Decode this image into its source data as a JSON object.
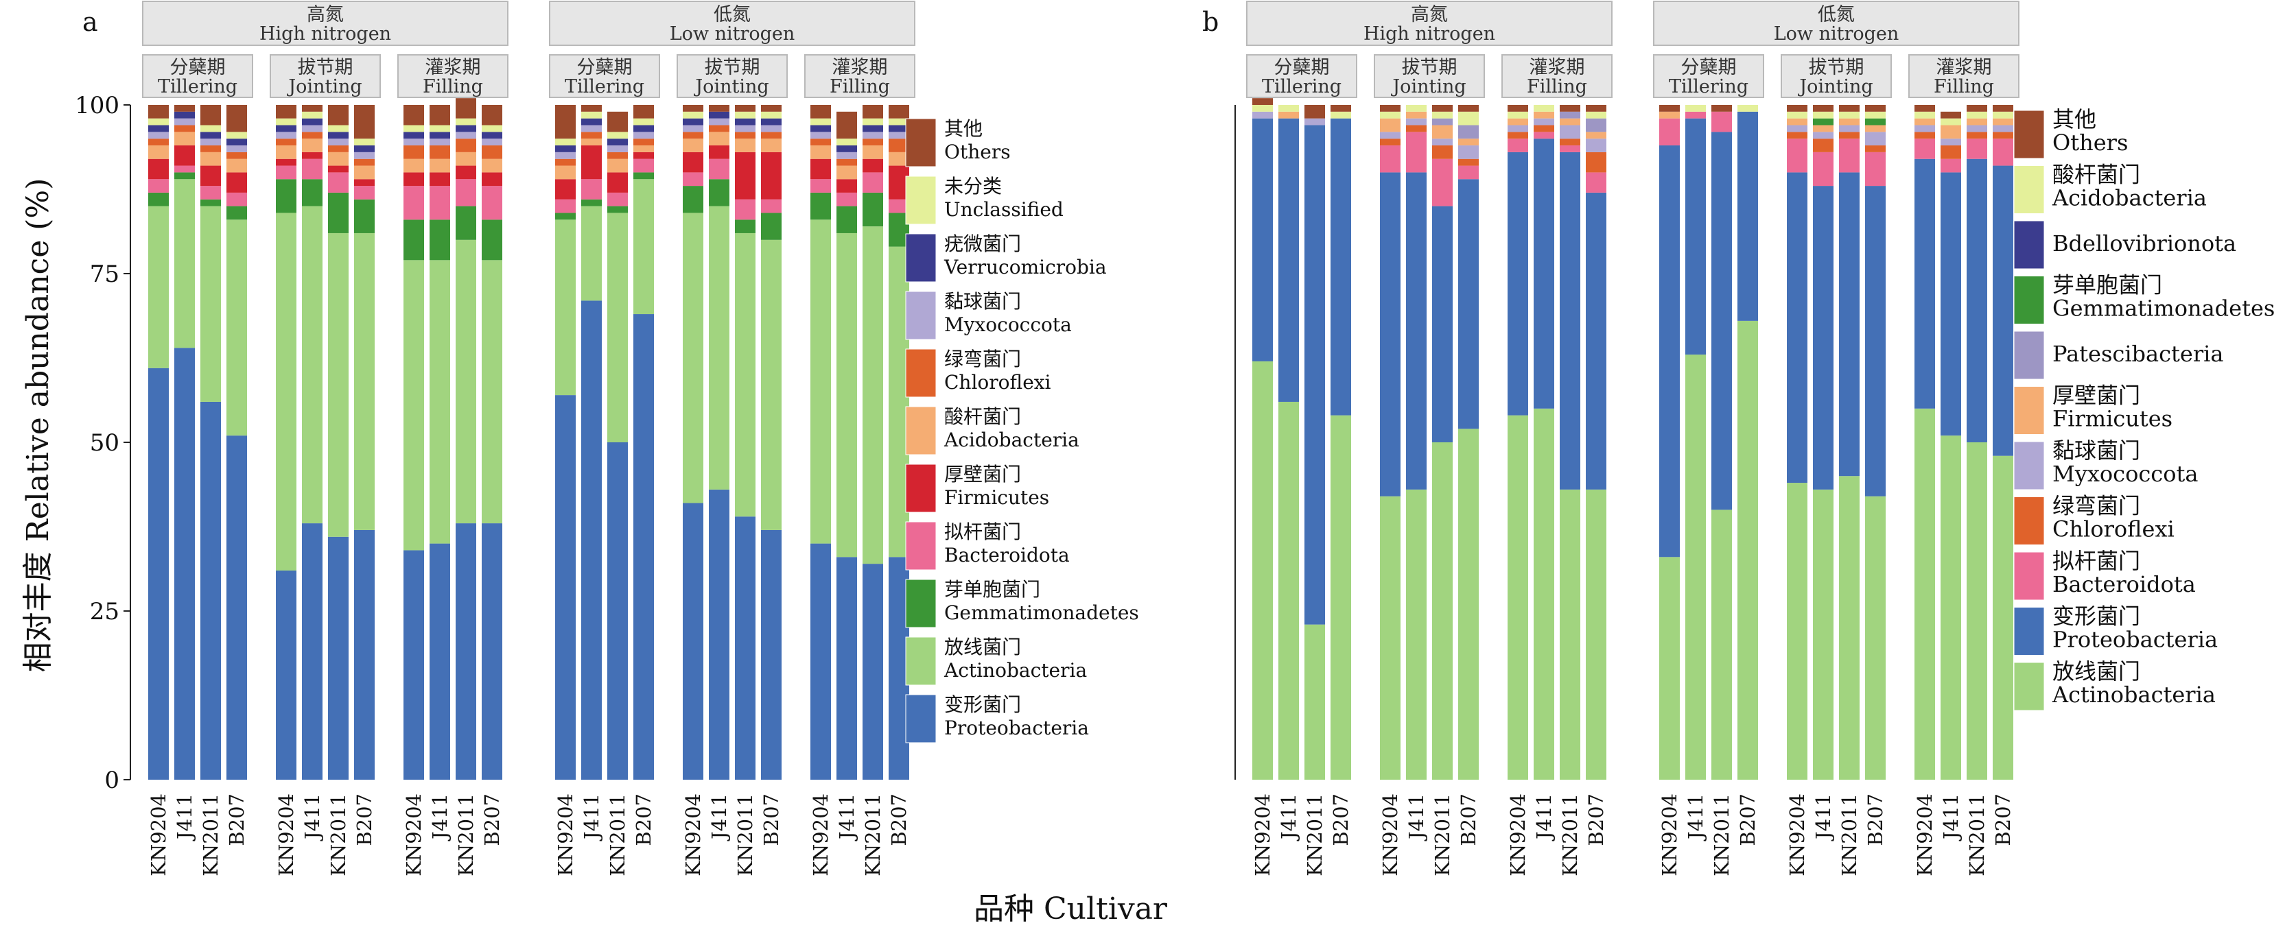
{
  "x_axis_label": "品种 Cultivar",
  "y_axis_label": "相对丰度 Relative abundance (%)",
  "nitrogen_levels": [
    {
      "cn": "高氮",
      "en": "High nitrogen"
    },
    {
      "cn": "低氮",
      "en": "Low nitrogen"
    }
  ],
  "stages": [
    {
      "cn": "分蘖期",
      "en": "Tillering"
    },
    {
      "cn": "拔节期",
      "en": "Jointing"
    },
    {
      "cn": "灌浆期",
      "en": "Filling"
    }
  ],
  "cultivars": [
    "KN9204",
    "J411",
    "KN2011",
    "B207"
  ],
  "chart_data": [
    {
      "panel": "a",
      "type": "bar",
      "stacked": true,
      "ylim": [
        0,
        100
      ],
      "yticks": [
        0,
        25,
        50,
        75,
        100
      ],
      "legend": [
        {
          "cn": "其他",
          "en": "Others",
          "color": "#9b4a2c"
        },
        {
          "cn": "未分类",
          "en": "Unclassified",
          "color": "#e4f09a"
        },
        {
          "cn": "疣微菌门",
          "en": "Verrucomicrobia",
          "color": "#3b3c8e"
        },
        {
          "cn": "黏球菌门",
          "en": "Myxococcota",
          "color": "#b0a8d4"
        },
        {
          "cn": "绿弯菌门",
          "en": "Chloroflexi",
          "color": "#e0622b"
        },
        {
          "cn": "酸杆菌门",
          "en": "Acidobacteria",
          "color": "#f5ad73"
        },
        {
          "cn": "厚壁菌门",
          "en": "Firmicutes",
          "color": "#d42430"
        },
        {
          "cn": "拟杆菌门",
          "en": "Bacteroidota",
          "color": "#ec6a95"
        },
        {
          "cn": "芽单胞菌门",
          "en": "Gemmatimonadetes",
          "color": "#3b9636"
        },
        {
          "cn": "放线菌门",
          "en": "Actinobacteria",
          "color": "#a1d47f"
        },
        {
          "cn": "变形菌门",
          "en": "Proteobacteria",
          "color": "#4470b6"
        }
      ],
      "series": [
        {
          "name": "变形菌门 Proteobacteria",
          "values": [
            [
              61,
              64,
              56,
              51
            ],
            [
              31,
              38,
              36,
              37
            ],
            [
              34,
              35,
              38,
              38
            ],
            [
              57,
              71,
              50,
              69
            ],
            [
              41,
              43,
              39,
              37
            ],
            [
              35,
              33,
              32,
              33
            ]
          ]
        },
        {
          "name": "放线菌门 Actinobacteria",
          "values": [
            [
              24,
              25,
              29,
              32
            ],
            [
              53,
              47,
              45,
              44
            ],
            [
              43,
              42,
              42,
              39
            ],
            [
              26,
              14,
              34,
              20
            ],
            [
              43,
              42,
              42,
              43
            ],
            [
              48,
              48,
              50,
              46
            ]
          ]
        },
        {
          "name": "芽单胞菌门 Gemmatimonadetes",
          "values": [
            [
              2,
              1,
              1,
              2
            ],
            [
              5,
              4,
              6,
              5
            ],
            [
              6,
              6,
              5,
              6
            ],
            [
              1,
              1,
              1,
              1
            ],
            [
              4,
              4,
              2,
              4
            ],
            [
              4,
              4,
              5,
              5
            ]
          ]
        },
        {
          "name": "拟杆菌门 Bacteroidota",
          "values": [
            [
              2,
              1,
              2,
              2
            ],
            [
              2,
              3,
              3,
              2
            ],
            [
              5,
              5,
              4,
              5
            ],
            [
              2,
              3,
              2,
              2
            ],
            [
              2,
              3,
              3,
              2
            ],
            [
              2,
              2,
              3,
              2
            ]
          ]
        },
        {
          "name": "厚壁菌门 Firmicutes",
          "values": [
            [
              3,
              3,
              3,
              3
            ],
            [
              1,
              1,
              1,
              1
            ],
            [
              2,
              2,
              2,
              2
            ],
            [
              3,
              5,
              3,
              1
            ],
            [
              3,
              2,
              7,
              7
            ],
            [
              3,
              2,
              2,
              5
            ]
          ]
        },
        {
          "name": "酸杆菌门 Acidobacteria",
          "values": [
            [
              2,
              2,
              2,
              2
            ],
            [
              2,
              2,
              2,
              2
            ],
            [
              2,
              2,
              2,
              2
            ],
            [
              2,
              1,
              2,
              1
            ],
            [
              2,
              2,
              2,
              2
            ],
            [
              2,
              2,
              2,
              2
            ]
          ]
        },
        {
          "name": "绿弯菌门 Chloroflexi",
          "values": [
            [
              1,
              1,
              1,
              1
            ],
            [
              1,
              1,
              1,
              1
            ],
            [
              2,
              2,
              2,
              2
            ],
            [
              1,
              1,
              1,
              1
            ],
            [
              1,
              1,
              1,
              1
            ],
            [
              1,
              1,
              1,
              2
            ]
          ]
        },
        {
          "name": "黏球菌门 Myxococcota",
          "values": [
            [
              1,
              1,
              1,
              1
            ],
            [
              1,
              1,
              1,
              1
            ],
            [
              1,
              1,
              1,
              1
            ],
            [
              1,
              1,
              1,
              1
            ],
            [
              1,
              1,
              1,
              1
            ],
            [
              1,
              1,
              1,
              1
            ]
          ]
        },
        {
          "name": "疣微菌门 Verrucomicrobia",
          "values": [
            [
              1,
              1,
              1,
              1
            ],
            [
              1,
              1,
              1,
              1
            ],
            [
              1,
              1,
              1,
              1
            ],
            [
              1,
              1,
              1,
              1
            ],
            [
              1,
              1,
              1,
              1
            ],
            [
              1,
              1,
              1,
              1
            ]
          ]
        },
        {
          "name": "未分类 Unclassified",
          "values": [
            [
              1,
              0,
              1,
              1
            ],
            [
              1,
              1,
              1,
              1
            ],
            [
              1,
              1,
              1,
              1
            ],
            [
              1,
              1,
              1,
              1
            ],
            [
              1,
              0,
              1,
              1
            ],
            [
              1,
              1,
              1,
              1
            ]
          ]
        },
        {
          "name": "其他 Others",
          "values": [
            [
              2,
              1,
              3,
              4
            ],
            [
              2,
              1,
              3,
              5
            ],
            [
              3,
              3,
              3,
              3
            ],
            [
              5,
              1,
              3,
              2
            ],
            [
              1,
              1,
              1,
              1
            ],
            [
              2,
              4,
              2,
              2
            ]
          ]
        }
      ]
    },
    {
      "panel": "b",
      "type": "bar",
      "stacked": true,
      "ylim": [
        0,
        100
      ],
      "legend": [
        {
          "cn": "其他",
          "en": "Others",
          "color": "#9b4a2c"
        },
        {
          "cn": "酸杆菌门",
          "en": "Acidobacteria",
          "color": "#e4f09a"
        },
        {
          "cn": "",
          "en": "Bdellovibrionota",
          "color": "#3b3c8e"
        },
        {
          "cn": "芽单胞菌门",
          "en": "Gemmatimonadetes",
          "color": "#3b9636"
        },
        {
          "cn": "",
          "en": "Patescibacteria",
          "color": "#9d96c4"
        },
        {
          "cn": "厚壁菌门",
          "en": "Firmicutes",
          "color": "#f5ad73"
        },
        {
          "cn": "黏球菌门",
          "en": "Myxococcota",
          "color": "#b0a8d4"
        },
        {
          "cn": "绿弯菌门",
          "en": "Chloroflexi",
          "color": "#e0622b"
        },
        {
          "cn": "拟杆菌门",
          "en": "Bacteroidota",
          "color": "#ec6a95"
        },
        {
          "cn": "变形菌门",
          "en": "Proteobacteria",
          "color": "#4470b6"
        },
        {
          "cn": "放线菌门",
          "en": "Actinobacteria",
          "color": "#a1d47f"
        }
      ],
      "series": [
        {
          "name": "放线菌门 Actinobacteria",
          "values": [
            [
              62,
              56,
              23,
              54
            ],
            [
              42,
              43,
              50,
              52
            ],
            [
              54,
              55,
              43,
              43
            ],
            [
              33,
              63,
              40,
              68
            ],
            [
              44,
              43,
              45,
              42
            ],
            [
              55,
              51,
              50,
              48
            ]
          ]
        },
        {
          "name": "变形菌门 Proteobacteria",
          "values": [
            [
              36,
              42,
              74,
              44
            ],
            [
              48,
              47,
              35,
              37
            ],
            [
              39,
              40,
              50,
              44
            ],
            [
              61,
              35,
              56,
              31
            ],
            [
              46,
              45,
              45,
              46
            ],
            [
              37,
              39,
              42,
              43
            ]
          ]
        },
        {
          "name": "拟杆菌门 Bacteroidota",
          "values": [
            [
              0,
              0,
              0,
              0
            ],
            [
              4,
              6,
              7,
              2
            ],
            [
              2,
              1,
              1,
              3
            ],
            [
              4,
              1,
              3,
              0
            ],
            [
              5,
              5,
              5,
              5
            ],
            [
              3,
              2,
              3,
              4
            ]
          ]
        },
        {
          "name": "绿弯菌门 Chloroflexi",
          "values": [
            [
              0,
              0,
              0,
              0
            ],
            [
              1,
              1,
              2,
              1
            ],
            [
              1,
              1,
              1,
              3
            ],
            [
              0,
              0,
              0,
              0
            ],
            [
              1,
              2,
              1,
              1
            ],
            [
              1,
              2,
              1,
              1
            ]
          ]
        },
        {
          "name": "黏球菌门 Myxococcota",
          "values": [
            [
              1,
              0,
              1,
              0
            ],
            [
              1,
              1,
              1,
              2
            ],
            [
              1,
              1,
              2,
              2
            ],
            [
              0,
              0,
              0,
              0
            ],
            [
              1,
              1,
              1,
              2
            ],
            [
              1,
              1,
              1,
              1
            ]
          ]
        },
        {
          "name": "厚壁菌门 Firmicutes",
          "values": [
            [
              0,
              1,
              0,
              0
            ],
            [
              2,
              1,
              2,
              1
            ],
            [
              1,
              1,
              1,
              1
            ],
            [
              1,
              0,
              0,
              0
            ],
            [
              1,
              1,
              1,
              1
            ],
            [
              1,
              2,
              1,
              1
            ]
          ]
        },
        {
          "name": "Patescibacteria",
          "values": [
            [
              0,
              0,
              0,
              0
            ],
            [
              0,
              0,
              1,
              2
            ],
            [
              0,
              0,
              1,
              2
            ],
            [
              0,
              0,
              0,
              0
            ],
            [
              0,
              0,
              0,
              0
            ],
            [
              0,
              0,
              0,
              0
            ]
          ]
        },
        {
          "name": "芽单胞菌门 Gemmatimonadetes",
          "values": [
            [
              0,
              0,
              0,
              0
            ],
            [
              0,
              0,
              0,
              0
            ],
            [
              0,
              0,
              0,
              0
            ],
            [
              0,
              0,
              0,
              0
            ],
            [
              0,
              1,
              0,
              1
            ],
            [
              0,
              0,
              0,
              0
            ]
          ]
        },
        {
          "name": "Bdellovibrionota",
          "values": [
            [
              0,
              0,
              0,
              0
            ],
            [
              0,
              0,
              0,
              0
            ],
            [
              0,
              0,
              0,
              0
            ],
            [
              0,
              0,
              0,
              0
            ],
            [
              0,
              0,
              0,
              0
            ],
            [
              0,
              0,
              0,
              0
            ]
          ]
        },
        {
          "name": "酸杆菌门 Acidobacteria",
          "values": [
            [
              1,
              1,
              0,
              1
            ],
            [
              1,
              1,
              1,
              2
            ],
            [
              1,
              1,
              0,
              1
            ],
            [
              0,
              1,
              0,
              1
            ],
            [
              1,
              1,
              1,
              1
            ],
            [
              1,
              1,
              1,
              1
            ]
          ]
        },
        {
          "name": "其他 Others",
          "values": [
            [
              1,
              0,
              2,
              1
            ],
            [
              1,
              0,
              1,
              1
            ],
            [
              1,
              0,
              1,
              1
            ],
            [
              1,
              0,
              1,
              0
            ],
            [
              1,
              1,
              1,
              1
            ],
            [
              1,
              1,
              1,
              1
            ]
          ]
        }
      ]
    }
  ]
}
